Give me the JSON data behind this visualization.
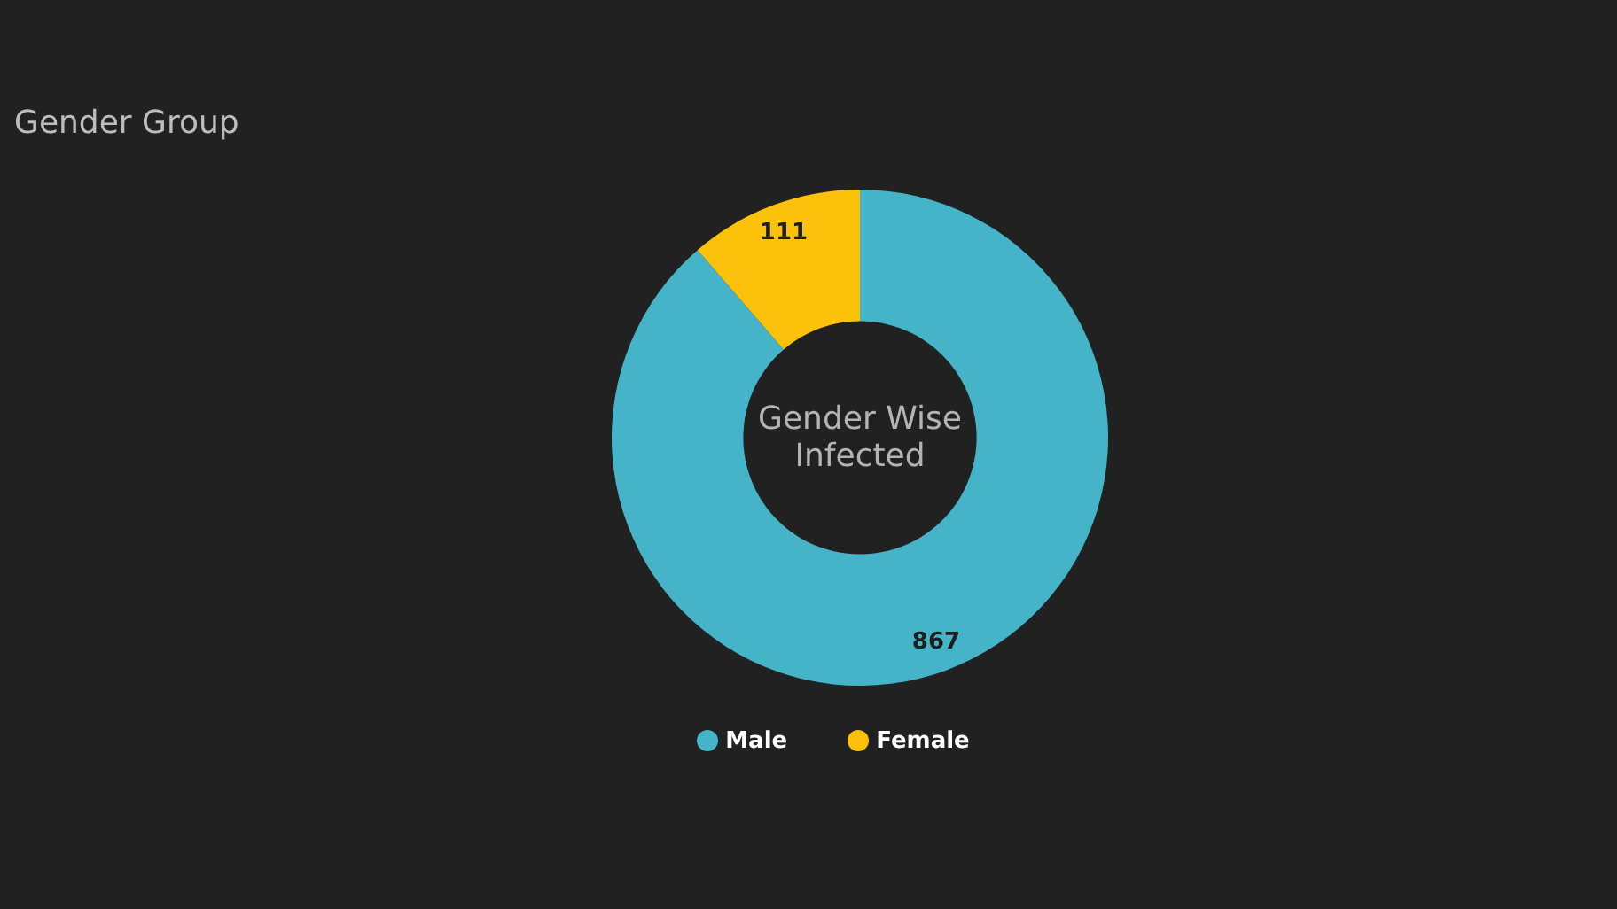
{
  "chart_data": {
    "type": "donut",
    "title": "Gender Group",
    "categories": [
      "Male",
      "Female"
    ],
    "values": [
      867,
      111
    ],
    "colors": [
      "#45b4c8",
      "#fbc10b"
    ],
    "data_labels": true,
    "legend": "bottom",
    "annotations": [
      "Gender Wise Infected"
    ]
  }
}
